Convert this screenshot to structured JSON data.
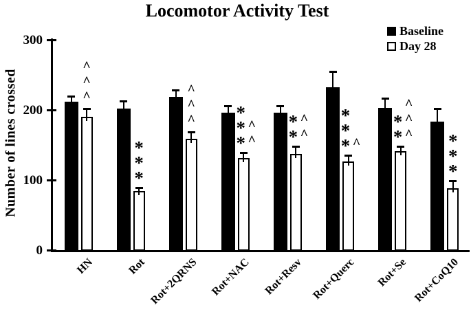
{
  "figure": {
    "title": "Locomotor Activity Test",
    "ylabel": "Number of lines crossed"
  },
  "legend": {
    "position": "top-right",
    "items": [
      {
        "label": "Baseline",
        "swatch": "filled"
      },
      {
        "label": "Day 28",
        "swatch": "open"
      }
    ]
  },
  "colors": {
    "bar_baseline_fill": "#000000",
    "bar_day28_fill": "#ffffff",
    "bar_outline": "#000000",
    "axis": "#000000",
    "background": "#ffffff",
    "text": "#000000"
  },
  "chart_data": {
    "type": "bar",
    "title": "Locomotor Activity Test",
    "xlabel": "",
    "ylabel": "Number of lines crossed",
    "ylim": [
      0,
      300
    ],
    "yticks": [
      0,
      100,
      200,
      300
    ],
    "grid": false,
    "legend_position": "top-right",
    "categories": [
      "HN",
      "Rot",
      "Rot+2QRNS",
      "Rot+NAC",
      "Rot+Resv",
      "Rot+Querc",
      "Rot+Se",
      "Rot+CoQ10"
    ],
    "series": [
      {
        "name": "Baseline",
        "style": "filled",
        "values": [
          212,
          202,
          219,
          197,
          197,
          233,
          203,
          184
        ],
        "errors": [
          8,
          11,
          10,
          9,
          9,
          22,
          14,
          18
        ]
      },
      {
        "name": "Day 28",
        "style": "open",
        "values": [
          191,
          85,
          159,
          132,
          138,
          127,
          142,
          89
        ],
        "errors": [
          11,
          5,
          10,
          8,
          11,
          9,
          7,
          11
        ]
      }
    ],
    "significance_annotations": [
      {
        "category": "HN",
        "series": "Day 28",
        "stars": 0,
        "carets": 3,
        "symbols": "^^^"
      },
      {
        "category": "Rot",
        "series": "Day 28",
        "stars": 3,
        "carets": 0,
        "symbols": "***"
      },
      {
        "category": "Rot+2QRNS",
        "series": "Day 28",
        "stars": 0,
        "carets": 3,
        "symbols": "^^^"
      },
      {
        "category": "Rot+NAC",
        "series": "Day 28",
        "stars": 3,
        "carets": 2,
        "symbols": "***^^"
      },
      {
        "category": "Rot+Resv",
        "series": "Day 28",
        "stars": 2,
        "carets": 2,
        "symbols": "**^^"
      },
      {
        "category": "Rot+Querc",
        "series": "Day 28",
        "stars": 3,
        "carets": 1,
        "symbols": "***^"
      },
      {
        "category": "Rot+Se",
        "series": "Day 28",
        "stars": 2,
        "carets": 3,
        "symbols": "**^^^"
      },
      {
        "category": "Rot+CoQ10",
        "series": "Day 28",
        "stars": 3,
        "carets": 0,
        "symbols": "***"
      }
    ]
  }
}
